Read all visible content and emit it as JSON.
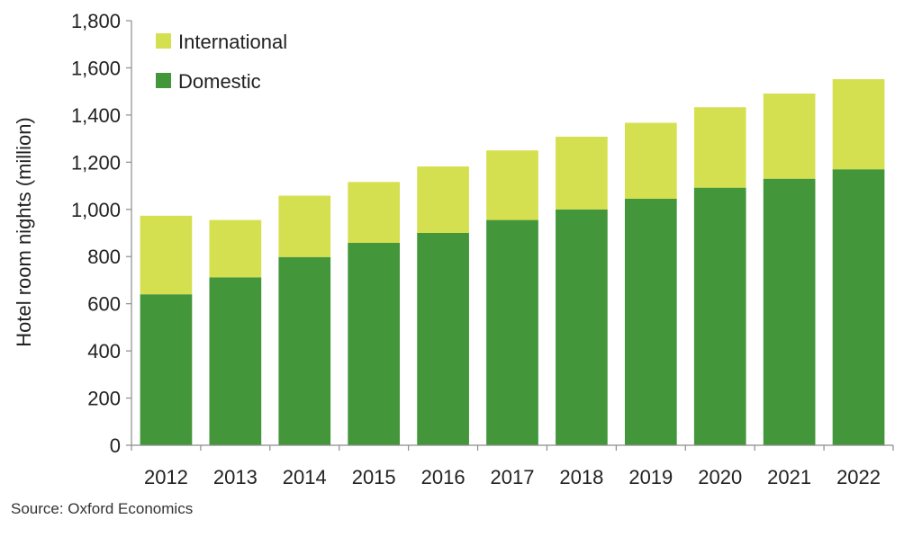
{
  "chart_data": {
    "type": "bar",
    "stacked": true,
    "categories": [
      "2012",
      "2013",
      "2014",
      "2015",
      "2016",
      "2017",
      "2018",
      "2019",
      "2020",
      "2021",
      "2022"
    ],
    "series": [
      {
        "name": "Domestic",
        "color": "#43963a",
        "values": [
          640,
          712,
          798,
          858,
          900,
          955,
          1000,
          1045,
          1092,
          1130,
          1170
        ]
      },
      {
        "name": "International",
        "color": "#d4e04f",
        "values": [
          333,
          243,
          260,
          258,
          282,
          295,
          308,
          322,
          341,
          361,
          382
        ]
      }
    ],
    "ylabel": "Hotel room nights (million)",
    "xlabel": "",
    "ylim": [
      0,
      1800
    ],
    "yticks": [
      "0",
      "200",
      "400",
      "600",
      "800",
      "1,000",
      "1,200",
      "1,400",
      "1,600",
      "1,800"
    ],
    "ytick_values": [
      0,
      200,
      400,
      600,
      800,
      1000,
      1200,
      1400,
      1600,
      1800
    ],
    "grid": false,
    "legend_position": "top-left",
    "legend_order": [
      "International",
      "Domestic"
    ]
  },
  "footer": {
    "source": "Source:  Oxford Economics"
  }
}
